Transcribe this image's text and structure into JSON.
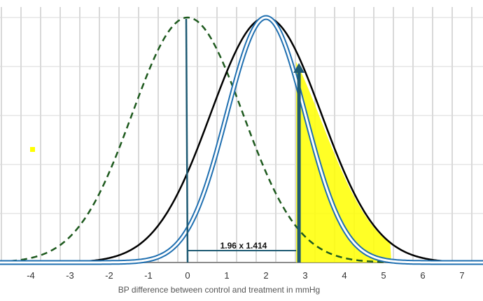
{
  "chart_data": {
    "type": "line",
    "title": "",
    "xlabel": "BP difference between control and treatment in mmHg",
    "ylabel": "",
    "xlim": [
      -4.75,
      7.5
    ],
    "x_ticks": [
      -4,
      -3,
      -2,
      -1,
      0,
      1,
      2,
      3,
      4,
      5,
      6,
      7
    ],
    "x_tick_labels": [
      "-4",
      "-3",
      "-2",
      "-1",
      "0",
      "1",
      "2",
      "3",
      "4",
      "5",
      "6",
      "7"
    ],
    "minor_gridlines_at_half_units": true,
    "grid": true,
    "series": [
      {
        "mean": 0,
        "sd": 1.414,
        "peak": 1.0,
        "style": "dashed",
        "color": "#1e5a1e"
      },
      {
        "mean": 2,
        "sd": 1.414,
        "peak": 1.0,
        "style": "solid",
        "color": "#000000"
      },
      {
        "mean": 2,
        "sd": 1.0,
        "peak": 1.0,
        "style": "double",
        "color": "#1f6fb0"
      }
    ],
    "annotations": {
      "bracket_label": "1.96 x 1.414",
      "bracket_from": 0,
      "bracket_to": 2.77,
      "critical_value": 2.77,
      "highlight_color": "#ffff00",
      "marker_color": "#1e5a73"
    }
  }
}
